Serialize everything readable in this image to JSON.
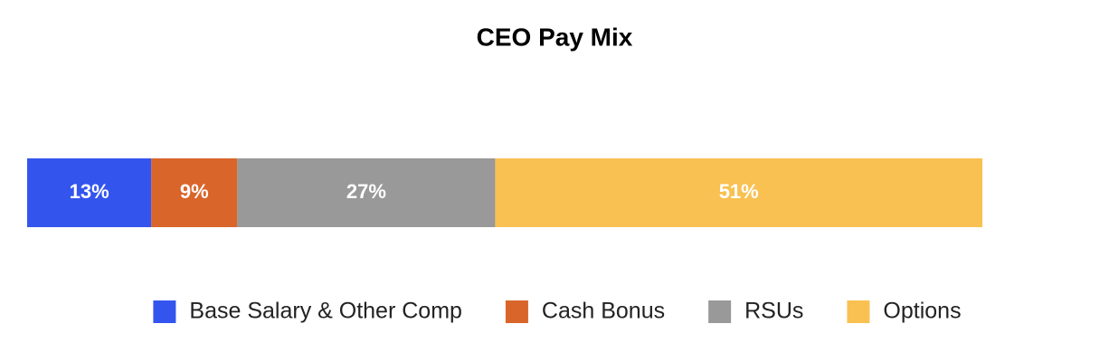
{
  "chart_data": {
    "type": "stacked-bar",
    "orientation": "horizontal",
    "title": "CEO Pay Mix",
    "xlim": [
      0,
      100
    ],
    "series": [
      {
        "name": "Base Salary & Other Comp",
        "color": "#3355ee",
        "values": [
          13
        ],
        "value_labels": [
          "13%"
        ]
      },
      {
        "name": "Cash Bonus",
        "color": "#d9652b",
        "values": [
          9
        ],
        "value_labels": [
          "9%"
        ]
      },
      {
        "name": "RSUs",
        "color": "#999999",
        "values": [
          27
        ],
        "value_labels": [
          "27%"
        ]
      },
      {
        "name": "Options",
        "color": "#f9c152",
        "values": [
          51
        ],
        "value_labels": [
          "51%"
        ]
      }
    ],
    "legend": "bottom"
  }
}
